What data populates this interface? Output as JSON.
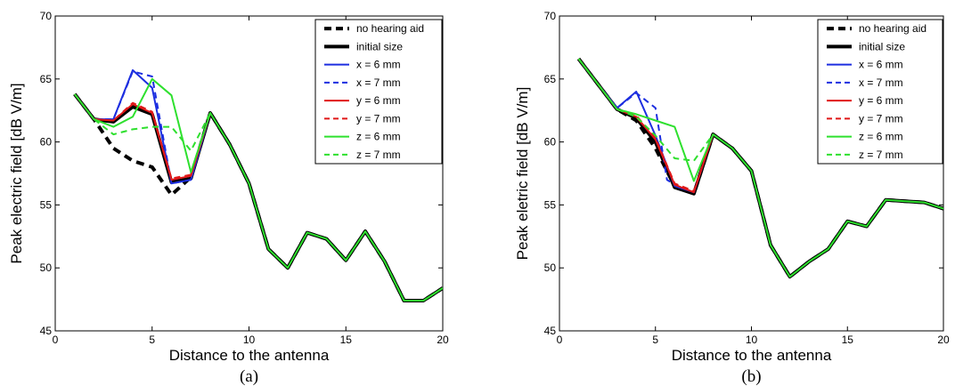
{
  "chart_data": [
    {
      "type": "line",
      "caption": "(a)",
      "xlabel": "Distance to the antenna",
      "ylabel": "Peak electric field [dB V/m]",
      "xlim": [
        0,
        20
      ],
      "ylim": [
        45,
        70
      ],
      "xticks": [
        "0",
        "5",
        "10",
        "15",
        "20"
      ],
      "yticks": [
        "45",
        "50",
        "55",
        "60",
        "65",
        "70"
      ],
      "legend_position": "top-right",
      "grid": false,
      "series": [
        {
          "name": "no hearing aid",
          "color": "#000000",
          "dash": "dashed",
          "width": "thick",
          "x": [
            1,
            2,
            3,
            4,
            5,
            6,
            7,
            8,
            9,
            10,
            11,
            12,
            13,
            14,
            15,
            16,
            17,
            18,
            19,
            20
          ],
          "y": [
            63.8,
            61.8,
            59.5,
            58.5,
            58.0,
            55.8,
            57.2,
            62.3,
            59.8,
            56.7,
            51.5,
            50.0,
            52.8,
            52.3,
            50.6,
            52.9,
            50.5,
            47.4,
            47.4,
            48.4
          ]
        },
        {
          "name": "initial size",
          "color": "#000000",
          "dash": "solid",
          "width": "thick",
          "x": [
            1,
            2,
            3,
            4,
            5,
            6,
            7,
            8,
            9,
            10,
            11,
            12,
            13,
            14,
            15,
            16,
            17,
            18,
            19,
            20
          ],
          "y": [
            63.8,
            61.8,
            61.6,
            62.8,
            62.2,
            56.8,
            57.1,
            62.3,
            59.8,
            56.7,
            51.5,
            50.0,
            52.8,
            52.3,
            50.6,
            52.9,
            50.5,
            47.4,
            47.4,
            48.4
          ]
        },
        {
          "name": "x = 6 mm",
          "color": "#1c2ee0",
          "dash": "solid",
          "width": "normal",
          "x": [
            1,
            2,
            3,
            4,
            5,
            6,
            7,
            8
          ],
          "y": [
            63.8,
            61.8,
            61.8,
            65.7,
            64.3,
            56.7,
            57.0,
            62.3
          ]
        },
        {
          "name": "x = 7 mm",
          "color": "#1c2ee0",
          "dash": "dashed",
          "width": "normal",
          "x": [
            1,
            2,
            3,
            4,
            5,
            6,
            7,
            8
          ],
          "y": [
            63.8,
            61.8,
            61.8,
            65.6,
            65.2,
            56.7,
            57.0,
            62.3
          ]
        },
        {
          "name": "y = 6 mm",
          "color": "#e01818",
          "dash": "solid",
          "width": "normal",
          "x": [
            1,
            2,
            3,
            4,
            5,
            6,
            7,
            8
          ],
          "y": [
            63.8,
            61.8,
            61.7,
            63.0,
            62.3,
            57.0,
            57.3,
            62.3
          ]
        },
        {
          "name": "y = 7 mm",
          "color": "#e01818",
          "dash": "dashed",
          "width": "normal",
          "x": [
            1,
            2,
            3,
            4,
            5,
            6,
            7,
            8
          ],
          "y": [
            63.8,
            61.8,
            61.7,
            63.1,
            62.4,
            57.1,
            57.4,
            62.3
          ]
        },
        {
          "name": "z = 6 mm",
          "color": "#2ee02e",
          "dash": "solid",
          "width": "normal",
          "x": [
            1,
            2,
            3,
            4,
            5,
            6,
            7,
            8,
            9,
            10,
            11,
            12,
            13,
            14,
            15,
            16,
            17,
            18,
            19,
            20
          ],
          "y": [
            63.8,
            61.8,
            61.2,
            62.0,
            65.0,
            63.7,
            57.6,
            62.3,
            59.8,
            56.7,
            51.5,
            50.0,
            52.8,
            52.3,
            50.6,
            52.9,
            50.5,
            47.4,
            47.4,
            48.4
          ]
        },
        {
          "name": "z = 7 mm",
          "color": "#2ee02e",
          "dash": "dashed",
          "width": "normal",
          "x": [
            1,
            2,
            3,
            4,
            5,
            6,
            7,
            8
          ],
          "y": [
            63.8,
            61.8,
            60.6,
            61.0,
            61.2,
            61.2,
            59.3,
            62.3
          ]
        }
      ]
    },
    {
      "type": "line",
      "caption": "(b)",
      "xlabel": "Distance to the antenna",
      "ylabel": "Peak eletric field [dB V/m]",
      "xlim": [
        0,
        20
      ],
      "ylim": [
        45,
        70
      ],
      "xticks": [
        "0",
        "5",
        "10",
        "15",
        "20"
      ],
      "yticks": [
        "45",
        "50",
        "55",
        "60",
        "65",
        "70"
      ],
      "legend_position": "top-right",
      "grid": false,
      "series": [
        {
          "name": "no hearing aid",
          "color": "#000000",
          "dash": "dashed",
          "width": "thick",
          "x": [
            1,
            2,
            3,
            4,
            5,
            6,
            7,
            8,
            9,
            10,
            11,
            12,
            13,
            14,
            15,
            16,
            17,
            18,
            19,
            20
          ],
          "y": [
            66.6,
            64.6,
            62.6,
            61.7,
            59.5,
            56.5,
            55.9,
            60.6,
            59.5,
            57.7,
            51.8,
            49.3,
            50.5,
            51.5,
            53.7,
            53.3,
            55.4,
            55.3,
            55.2,
            54.7
          ]
        },
        {
          "name": "initial size",
          "color": "#000000",
          "dash": "solid",
          "width": "thick",
          "x": [
            1,
            2,
            3,
            4,
            5,
            6,
            7,
            8,
            9,
            10,
            11,
            12,
            13,
            14,
            15,
            16,
            17,
            18,
            19,
            20
          ],
          "y": [
            66.6,
            64.6,
            62.6,
            61.9,
            60.0,
            56.4,
            55.9,
            60.6,
            59.5,
            57.7,
            51.8,
            49.3,
            50.5,
            51.5,
            53.7,
            53.3,
            55.4,
            55.3,
            55.2,
            54.7
          ]
        },
        {
          "name": "x = 6 mm",
          "color": "#1c2ee0",
          "dash": "solid",
          "width": "normal",
          "x": [
            1,
            2,
            3,
            4,
            5,
            6,
            7,
            8
          ],
          "y": [
            66.6,
            64.6,
            62.7,
            64.0,
            60.5,
            56.5,
            56.0,
            60.6
          ]
        },
        {
          "name": "x = 7 mm",
          "color": "#1c2ee0",
          "dash": "dashed",
          "width": "normal",
          "x": [
            1,
            2,
            3,
            4,
            5,
            5.6,
            6,
            7,
            8
          ],
          "y": [
            66.6,
            64.6,
            62.7,
            63.9,
            62.7,
            57.0,
            56.6,
            56.0,
            60.6
          ]
        },
        {
          "name": "y = 6 mm",
          "color": "#e01818",
          "dash": "solid",
          "width": "normal",
          "x": [
            1,
            2,
            3,
            4,
            5,
            6,
            7,
            8
          ],
          "y": [
            66.6,
            64.6,
            62.6,
            62.0,
            60.2,
            56.6,
            56.0,
            60.6
          ]
        },
        {
          "name": "y = 7 mm",
          "color": "#e01818",
          "dash": "dashed",
          "width": "normal",
          "x": [
            1,
            2,
            3,
            4,
            5,
            6,
            7,
            8
          ],
          "y": [
            66.6,
            64.6,
            62.6,
            62.1,
            60.3,
            56.7,
            56.1,
            60.6
          ]
        },
        {
          "name": "z = 6 mm",
          "color": "#2ee02e",
          "dash": "solid",
          "width": "normal",
          "x": [
            1,
            2,
            3,
            4,
            5,
            6,
            7,
            8,
            9,
            10,
            11,
            12,
            13,
            14,
            15,
            16,
            17,
            18,
            19,
            20
          ],
          "y": [
            66.6,
            64.6,
            62.6,
            62.2,
            61.7,
            61.2,
            56.9,
            60.6,
            59.5,
            57.7,
            51.8,
            49.3,
            50.5,
            51.5,
            53.7,
            53.3,
            55.4,
            55.3,
            55.2,
            54.7
          ]
        },
        {
          "name": "z = 7 mm",
          "color": "#2ee02e",
          "dash": "dashed",
          "width": "normal",
          "x": [
            1,
            2,
            3,
            4,
            5,
            6,
            7,
            8
          ],
          "y": [
            66.6,
            64.6,
            62.6,
            62.0,
            60.5,
            58.7,
            58.5,
            60.6
          ]
        }
      ]
    }
  ]
}
